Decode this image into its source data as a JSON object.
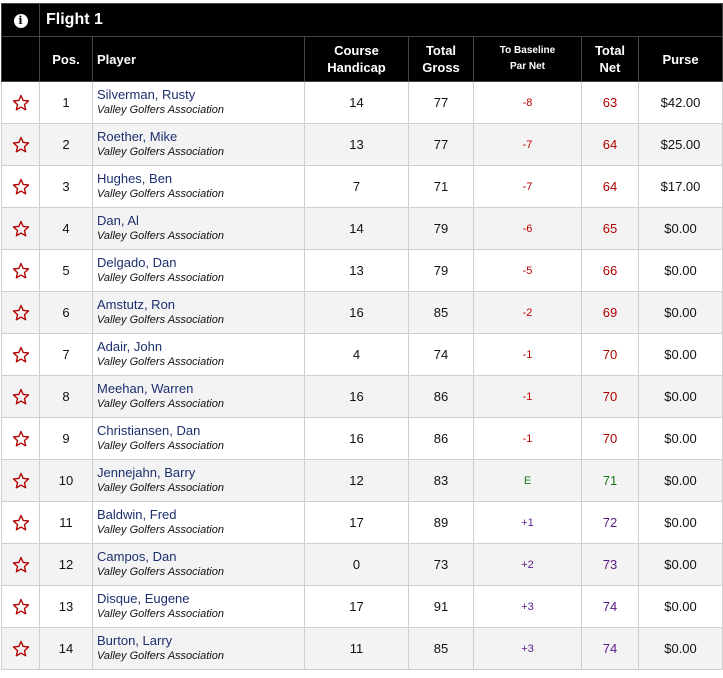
{
  "flight": {
    "info_icon": "info-icon",
    "title": "Flight 1"
  },
  "headers": {
    "pos": "Pos.",
    "player": "Player",
    "course_handicap": [
      "Course",
      "Handicap"
    ],
    "total_gross": [
      "Total",
      "Gross"
    ],
    "to_baseline": [
      "To Baseline",
      "Par Net"
    ],
    "total_net": [
      "Total",
      "Net"
    ],
    "purse": "Purse"
  },
  "colors": {
    "header_bg": "#000000",
    "negative": "#c00000",
    "even": "#1a7a1a",
    "positive": "#5a1a8a",
    "star": "#b00000",
    "player_name": "#1c2f6e"
  },
  "rows": [
    {
      "pos": "1",
      "name": "Silverman, Rusty",
      "club": "Valley Golfers Association",
      "handicap": "14",
      "gross": "77",
      "to_par": "-8",
      "net": "63",
      "purse": "$42.00"
    },
    {
      "pos": "2",
      "name": "Roether, Mike",
      "club": "Valley Golfers Association",
      "handicap": "13",
      "gross": "77",
      "to_par": "-7",
      "net": "64",
      "purse": "$25.00"
    },
    {
      "pos": "3",
      "name": "Hughes, Ben",
      "club": "Valley Golfers Association",
      "handicap": "7",
      "gross": "71",
      "to_par": "-7",
      "net": "64",
      "purse": "$17.00"
    },
    {
      "pos": "4",
      "name": "Dan, Al",
      "club": "Valley Golfers Association",
      "handicap": "14",
      "gross": "79",
      "to_par": "-6",
      "net": "65",
      "purse": "$0.00"
    },
    {
      "pos": "5",
      "name": "Delgado, Dan",
      "club": "Valley Golfers Association",
      "handicap": "13",
      "gross": "79",
      "to_par": "-5",
      "net": "66",
      "purse": "$0.00"
    },
    {
      "pos": "6",
      "name": "Amstutz, Ron",
      "club": "Valley Golfers Association",
      "handicap": "16",
      "gross": "85",
      "to_par": "-2",
      "net": "69",
      "purse": "$0.00"
    },
    {
      "pos": "7",
      "name": "Adair, John",
      "club": "Valley Golfers Association",
      "handicap": "4",
      "gross": "74",
      "to_par": "-1",
      "net": "70",
      "purse": "$0.00"
    },
    {
      "pos": "8",
      "name": "Meehan, Warren",
      "club": "Valley Golfers Association",
      "handicap": "16",
      "gross": "86",
      "to_par": "-1",
      "net": "70",
      "purse": "$0.00"
    },
    {
      "pos": "9",
      "name": "Christiansen, Dan",
      "club": "Valley Golfers Association",
      "handicap": "16",
      "gross": "86",
      "to_par": "-1",
      "net": "70",
      "purse": "$0.00"
    },
    {
      "pos": "10",
      "name": "Jennejahn, Barry",
      "club": "Valley Golfers Association",
      "handicap": "12",
      "gross": "83",
      "to_par": "E",
      "net": "71",
      "purse": "$0.00"
    },
    {
      "pos": "11",
      "name": "Baldwin, Fred",
      "club": "Valley Golfers Association",
      "handicap": "17",
      "gross": "89",
      "to_par": "+1",
      "net": "72",
      "purse": "$0.00"
    },
    {
      "pos": "12",
      "name": "Campos, Dan",
      "club": "Valley Golfers Association",
      "handicap": "0",
      "gross": "73",
      "to_par": "+2",
      "net": "73",
      "purse": "$0.00"
    },
    {
      "pos": "13",
      "name": "Disque, Eugene",
      "club": "Valley Golfers Association",
      "handicap": "17",
      "gross": "91",
      "to_par": "+3",
      "net": "74",
      "purse": "$0.00"
    },
    {
      "pos": "14",
      "name": "Burton, Larry",
      "club": "Valley Golfers Association",
      "handicap": "11",
      "gross": "85",
      "to_par": "+3",
      "net": "74",
      "purse": "$0.00"
    }
  ]
}
